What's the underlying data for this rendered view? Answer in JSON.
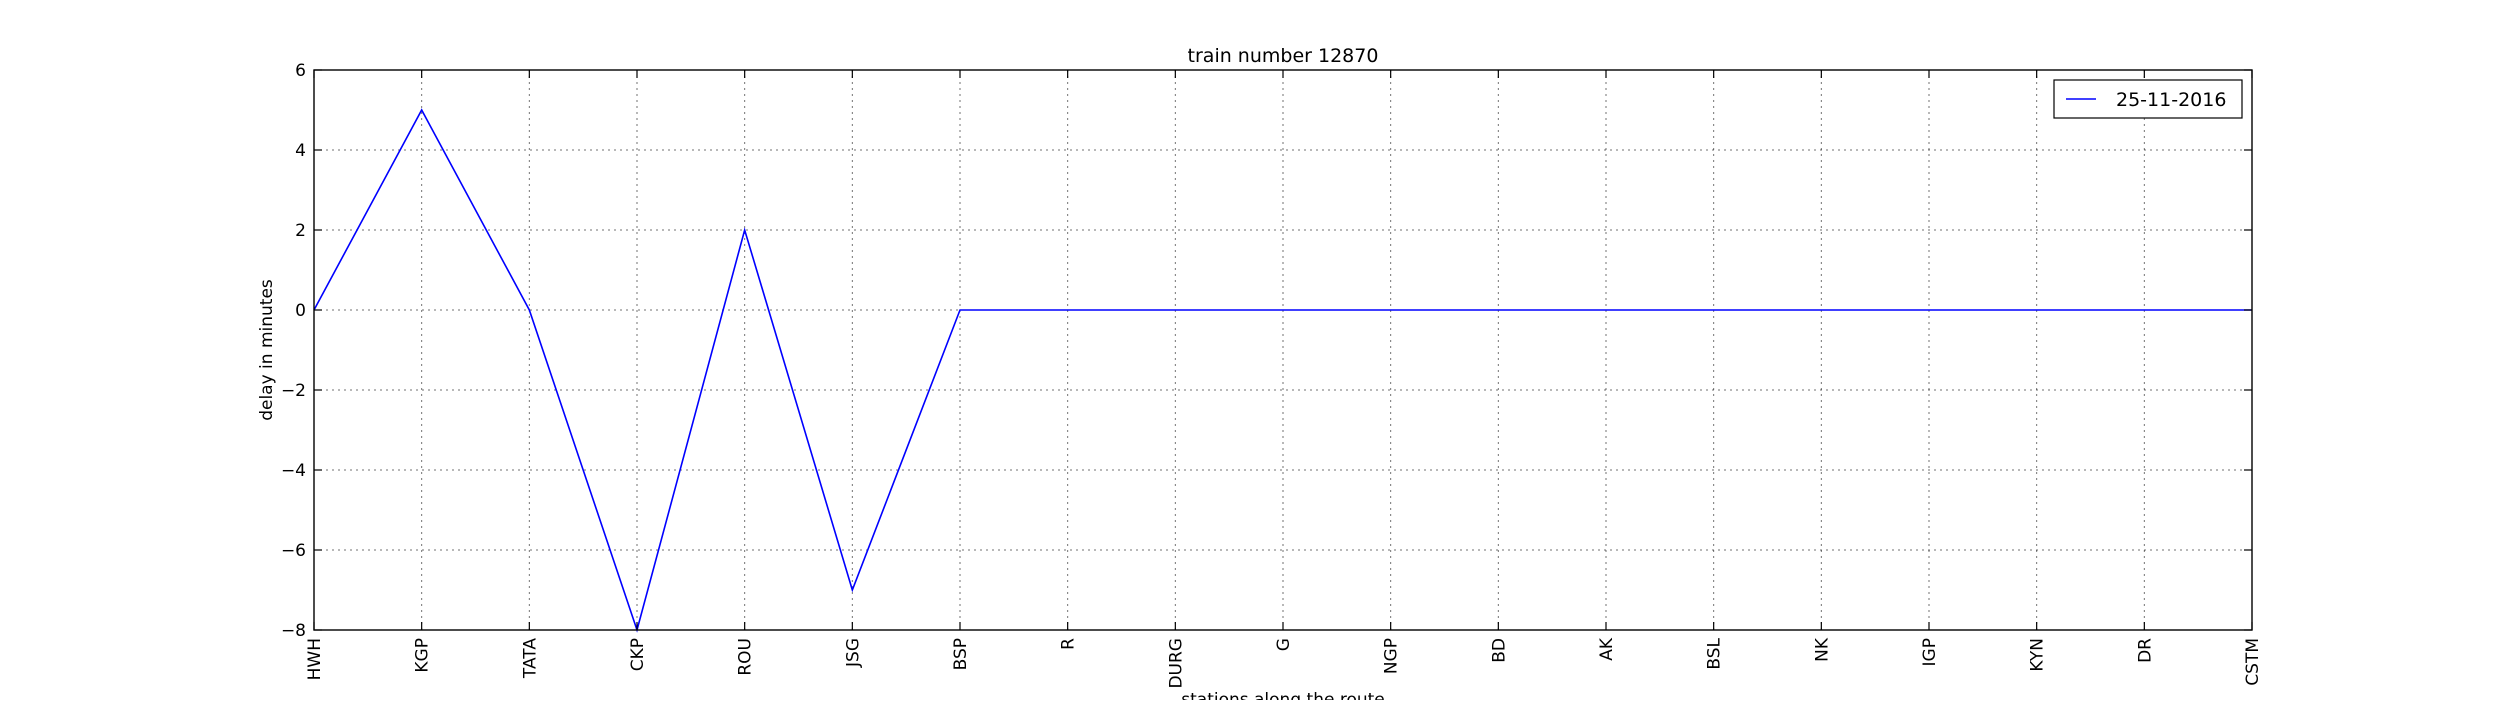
{
  "chart_data": {
    "type": "line",
    "title": "train number 12870",
    "xlabel": "stations along the route",
    "ylabel": "delay in minutes",
    "categories": [
      "HWH",
      "KGP",
      "TATA",
      "CKP",
      "ROU",
      "JSG",
      "BSP",
      "R",
      "DURG",
      "G",
      "NGP",
      "BD",
      "AK",
      "BSL",
      "NK",
      "IGP",
      "KYN",
      "DR",
      "CSTM"
    ],
    "series": [
      {
        "name": "25-11-2016",
        "color": "#0000ff",
        "values": [
          0,
          5,
          0,
          -8,
          2,
          -7,
          0,
          0,
          0,
          0,
          0,
          0,
          0,
          0,
          0,
          0,
          0,
          0,
          0
        ]
      }
    ],
    "ylim": [
      -8,
      6
    ],
    "yticks": [
      6,
      4,
      2,
      0,
      -2,
      -4,
      -6,
      -8
    ],
    "ytick_labels": [
      "6",
      "4",
      "2",
      "0",
      "−2",
      "−4",
      "−6",
      "−8"
    ],
    "grid": true,
    "legend_position": "top-right"
  }
}
